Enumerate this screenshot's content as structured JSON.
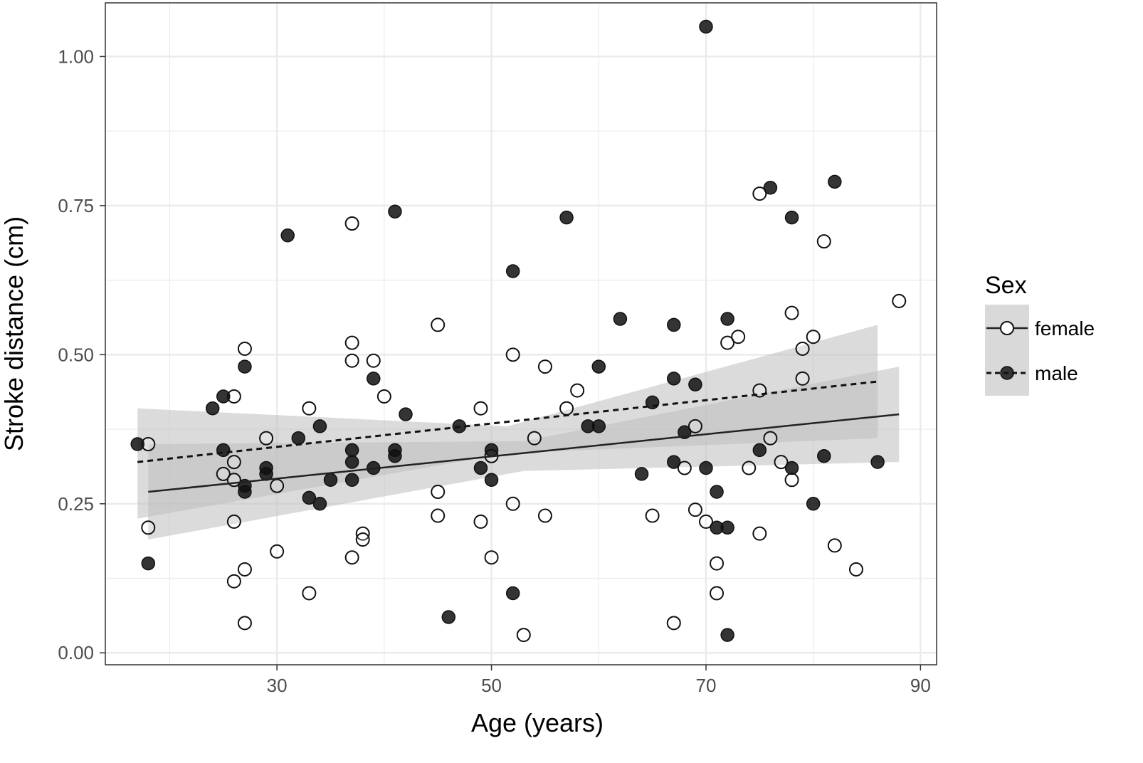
{
  "chart_data": {
    "type": "scatter",
    "title": "",
    "xlabel": "Age (years)",
    "ylabel": "Stroke distance (cm)",
    "xlim": [
      14,
      91.5
    ],
    "ylim": [
      -0.02,
      1.09
    ],
    "xticks": [
      30,
      50,
      70,
      90
    ],
    "xticks_minor": [
      20,
      40,
      60,
      80
    ],
    "yticks": [
      0.0,
      0.25,
      0.5,
      0.75,
      1.0
    ],
    "ytick_labels": [
      "0.00",
      "0.25",
      "0.50",
      "0.75",
      "1.00"
    ],
    "yticks_minor": [
      0.125,
      0.375,
      0.625,
      0.875
    ],
    "grid": true,
    "legend": {
      "title": "Sex",
      "position": "right",
      "entries": [
        {
          "key": "female",
          "label": "female",
          "marker": "open-circle",
          "line": "solid"
        },
        {
          "key": "male",
          "label": "male",
          "marker": "filled-circle",
          "line": "dashed"
        }
      ]
    },
    "colors": {
      "female_line": "#222222",
      "male_line": "#111111",
      "marker_fill_male": "#111111",
      "marker_stroke": "#111111",
      "marker_fill_female": "#ffffff",
      "ribbon": "#bdbdbd",
      "grid": "#ebebeb",
      "panel_border": "#333333",
      "legend_key_bg": "#d9d9d9"
    },
    "series": [
      {
        "name": "female",
        "points": [
          [
            18,
            0.35
          ],
          [
            18,
            0.21
          ],
          [
            25,
            0.3
          ],
          [
            26,
            0.43
          ],
          [
            26,
            0.32
          ],
          [
            26,
            0.29
          ],
          [
            26,
            0.22
          ],
          [
            26,
            0.12
          ],
          [
            27,
            0.51
          ],
          [
            27,
            0.14
          ],
          [
            27,
            0.05
          ],
          [
            29,
            0.36
          ],
          [
            30,
            0.28
          ],
          [
            30,
            0.17
          ],
          [
            33,
            0.41
          ],
          [
            33,
            0.1
          ],
          [
            37,
            0.72
          ],
          [
            37,
            0.52
          ],
          [
            37,
            0.49
          ],
          [
            37,
            0.16
          ],
          [
            38,
            0.2
          ],
          [
            38,
            0.19
          ],
          [
            39,
            0.49
          ],
          [
            40,
            0.43
          ],
          [
            45,
            0.55
          ],
          [
            45,
            0.27
          ],
          [
            45,
            0.23
          ],
          [
            49,
            0.41
          ],
          [
            49,
            0.22
          ],
          [
            50,
            0.33
          ],
          [
            50,
            0.16
          ],
          [
            52,
            0.5
          ],
          [
            52,
            0.25
          ],
          [
            53,
            0.03
          ],
          [
            54,
            0.36
          ],
          [
            55,
            0.48
          ],
          [
            55,
            0.23
          ],
          [
            57,
            0.41
          ],
          [
            58,
            0.44
          ],
          [
            65,
            0.23
          ],
          [
            67,
            0.05
          ],
          [
            68,
            0.31
          ],
          [
            69,
            0.38
          ],
          [
            69,
            0.24
          ],
          [
            70,
            0.22
          ],
          [
            71,
            0.15
          ],
          [
            71,
            0.1
          ],
          [
            72,
            0.52
          ],
          [
            73,
            0.53
          ],
          [
            74,
            0.31
          ],
          [
            75,
            0.77
          ],
          [
            75,
            0.44
          ],
          [
            75,
            0.2
          ],
          [
            76,
            0.36
          ],
          [
            77,
            0.32
          ],
          [
            78,
            0.57
          ],
          [
            78,
            0.29
          ],
          [
            79,
            0.51
          ],
          [
            79,
            0.46
          ],
          [
            80,
            0.53
          ],
          [
            81,
            0.69
          ],
          [
            82,
            0.18
          ],
          [
            84,
            0.14
          ],
          [
            88,
            0.59
          ]
        ],
        "fit": {
          "x": [
            18,
            88
          ],
          "y": [
            0.27,
            0.4
          ]
        },
        "ribbon": {
          "x": [
            18,
            53,
            88
          ],
          "lower": [
            0.19,
            0.305,
            0.32
          ],
          "upper": [
            0.35,
            0.355,
            0.48
          ]
        }
      },
      {
        "name": "male",
        "points": [
          [
            17,
            0.35
          ],
          [
            18,
            0.15
          ],
          [
            24,
            0.41
          ],
          [
            25,
            0.43
          ],
          [
            25,
            0.34
          ],
          [
            27,
            0.48
          ],
          [
            27,
            0.28
          ],
          [
            27,
            0.27
          ],
          [
            29,
            0.31
          ],
          [
            29,
            0.3
          ],
          [
            31,
            0.7
          ],
          [
            32,
            0.36
          ],
          [
            33,
            0.26
          ],
          [
            34,
            0.38
          ],
          [
            34,
            0.25
          ],
          [
            35,
            0.29
          ],
          [
            37,
            0.34
          ],
          [
            37,
            0.32
          ],
          [
            37,
            0.29
          ],
          [
            39,
            0.46
          ],
          [
            39,
            0.31
          ],
          [
            41,
            0.74
          ],
          [
            41,
            0.34
          ],
          [
            41,
            0.33
          ],
          [
            42,
            0.4
          ],
          [
            46,
            0.06
          ],
          [
            47,
            0.38
          ],
          [
            49,
            0.31
          ],
          [
            50,
            0.34
          ],
          [
            50,
            0.29
          ],
          [
            52,
            0.64
          ],
          [
            52,
            0.1
          ],
          [
            57,
            0.73
          ],
          [
            59,
            0.38
          ],
          [
            60,
            0.48
          ],
          [
            60,
            0.38
          ],
          [
            62,
            0.56
          ],
          [
            64,
            0.3
          ],
          [
            65,
            0.42
          ],
          [
            67,
            0.55
          ],
          [
            67,
            0.46
          ],
          [
            67,
            0.32
          ],
          [
            68,
            0.37
          ],
          [
            69,
            0.45
          ],
          [
            70,
            1.05
          ],
          [
            70,
            0.31
          ],
          [
            71,
            0.27
          ],
          [
            71,
            0.21
          ],
          [
            72,
            0.56
          ],
          [
            72,
            0.21
          ],
          [
            72,
            0.03
          ],
          [
            75,
            0.34
          ],
          [
            76,
            0.78
          ],
          [
            78,
            0.73
          ],
          [
            78,
            0.31
          ],
          [
            80,
            0.25
          ],
          [
            81,
            0.33
          ],
          [
            82,
            0.79
          ],
          [
            86,
            0.32
          ]
        ],
        "fit": {
          "x": [
            17,
            86
          ],
          "y": [
            0.32,
            0.455
          ]
        },
        "ribbon": {
          "x": [
            17,
            51.5,
            86
          ],
          "lower": [
            0.225,
            0.335,
            0.36
          ],
          "upper": [
            0.41,
            0.38,
            0.55
          ]
        }
      }
    ]
  }
}
